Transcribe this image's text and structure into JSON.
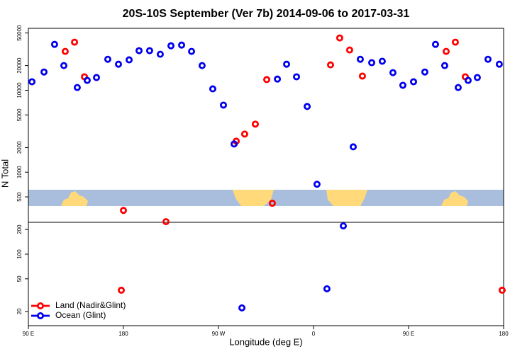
{
  "chart_data": {
    "type": "scatter",
    "title": "20S-10S September (Ver 7b)   2014-09-06 to 2017-03-31",
    "x_label": "Longitude (deg E)",
    "y_label": "N Total",
    "log_y": true,
    "legend": "bottom-left",
    "xlim": [
      90,
      540
    ],
    "xticks": [
      {
        "value": 90,
        "label": "90 E"
      },
      {
        "value": 180,
        "label": "180"
      },
      {
        "value": 270,
        "label": "90 W"
      },
      {
        "value": 360,
        "label": "0"
      },
      {
        "value": 450,
        "label": "90 E"
      },
      {
        "value": 540,
        "label": "180"
      }
    ],
    "ylim": [
      13.4,
      57000
    ],
    "yticks": [
      20,
      50,
      100,
      200,
      500,
      1000,
      2000,
      5000,
      10000,
      20000,
      50000
    ],
    "series": [
      {
        "name": "Land (Nadir&Glint)",
        "color": "#ff0000",
        "x": [
          124.9,
          133.7,
          143.1,
          180.0,
          178.0,
          220.3,
          286.8,
          294.8,
          304.9,
          315.7,
          321.0,
          376.1,
          384.8,
          394.2,
          406.3,
          485.6,
          494.3,
          503.7,
          538.6
        ],
        "values": [
          29800,
          38600,
          14600,
          342,
          36.3,
          249,
          2390,
          2920,
          3860,
          13500,
          418,
          20400,
          43500,
          31000,
          14900,
          29800,
          38600,
          14600,
          36.3
        ]
      },
      {
        "name": "Ocean (Glint)",
        "color": "#0000ee",
        "x": [
          93.4,
          104.8,
          114.8,
          123.6,
          136.3,
          145.7,
          154.5,
          165.2,
          175.3,
          185.4,
          194.8,
          204.8,
          214.9,
          225.0,
          235.1,
          244.5,
          254.5,
          264.6,
          274.7,
          284.8,
          292.2,
          325.8,
          334.5,
          343.9,
          354.0,
          363.3,
          372.7,
          388.2,
          397.6,
          404.3,
          415.1,
          425.1,
          435.2,
          444.6,
          454.7,
          465.4,
          475.5,
          484.2,
          497.0,
          506.4,
          515.1,
          525.2,
          535.9
        ],
        "values": [
          12700,
          16700,
          36300,
          20000,
          10800,
          13200,
          14300,
          23900,
          20800,
          23500,
          30400,
          30400,
          27500,
          34900,
          35600,
          29800,
          20000,
          10400,
          6590,
          2210,
          22.1,
          13700,
          20800,
          14600,
          6340,
          713,
          37.8,
          221,
          2040,
          23900,
          21700,
          22600,
          16400,
          11500,
          12700,
          16700,
          36300,
          20000,
          10800,
          13200,
          14300,
          23900,
          20800
        ]
      }
    ]
  }
}
